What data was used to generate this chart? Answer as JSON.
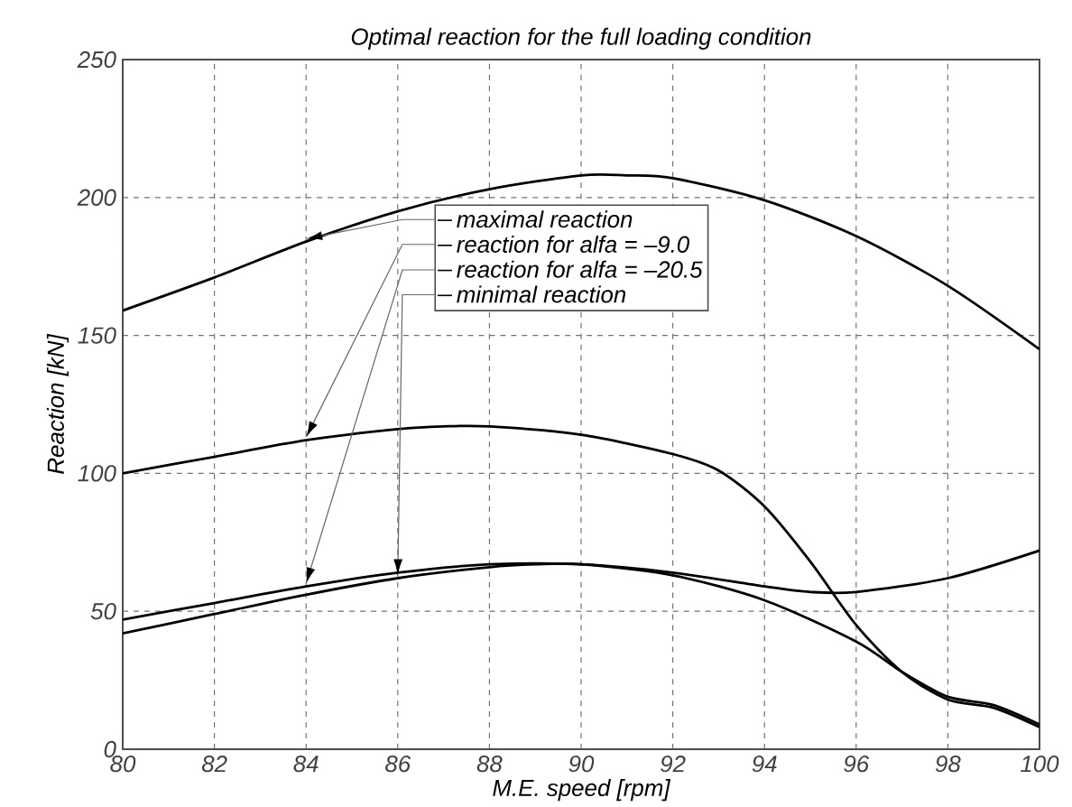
{
  "chart_data": {
    "type": "line",
    "title": "Optimal reaction for the full loading condition",
    "xlabel": "M.E. speed [rpm]",
    "ylabel": "Reaction [kN]",
    "xlim": [
      80,
      100
    ],
    "ylim": [
      0,
      250
    ],
    "xticks": [
      80,
      82,
      84,
      86,
      88,
      90,
      92,
      94,
      96,
      98,
      100
    ],
    "yticks": [
      0,
      50,
      100,
      150,
      200,
      250
    ],
    "grid": true,
    "legend": "top",
    "line_style": "solid",
    "marker": "none",
    "series": [
      {
        "name": "maximal reaction",
        "color": "#000000",
        "x": [
          80,
          82,
          84,
          86,
          88,
          90,
          91,
          92,
          94,
          96,
          98,
          100
        ],
        "values": [
          159,
          171,
          184,
          195,
          203,
          208,
          208,
          207,
          199,
          186,
          168,
          145
        ]
      },
      {
        "name": "reaction for alfa = –9.0",
        "color": "#000000",
        "x": [
          80,
          82,
          84,
          86,
          87,
          88,
          90,
          92,
          93,
          94,
          95,
          96,
          97,
          98,
          99,
          100
        ],
        "values": [
          100,
          106,
          112,
          116,
          117,
          117,
          114,
          107,
          101,
          88,
          68,
          45,
          28,
          18,
          15,
          8
        ]
      },
      {
        "name": "reaction for alfa = –20.5",
        "color": "#000000",
        "x": [
          80,
          82,
          84,
          86,
          88,
          90,
          92,
          94,
          95,
          96,
          98,
          100
        ],
        "values": [
          47,
          53,
          59,
          64,
          67,
          67,
          64,
          59,
          57,
          57,
          62,
          72
        ]
      },
      {
        "name": "minimal reaction",
        "color": "#000000",
        "x": [
          80,
          82,
          84,
          86,
          88,
          89,
          90,
          92,
          94,
          96,
          97,
          98,
          99,
          100
        ],
        "values": [
          42,
          49,
          56,
          62,
          66,
          67,
          67,
          63,
          54,
          39,
          28,
          19,
          16,
          9
        ]
      }
    ]
  }
}
